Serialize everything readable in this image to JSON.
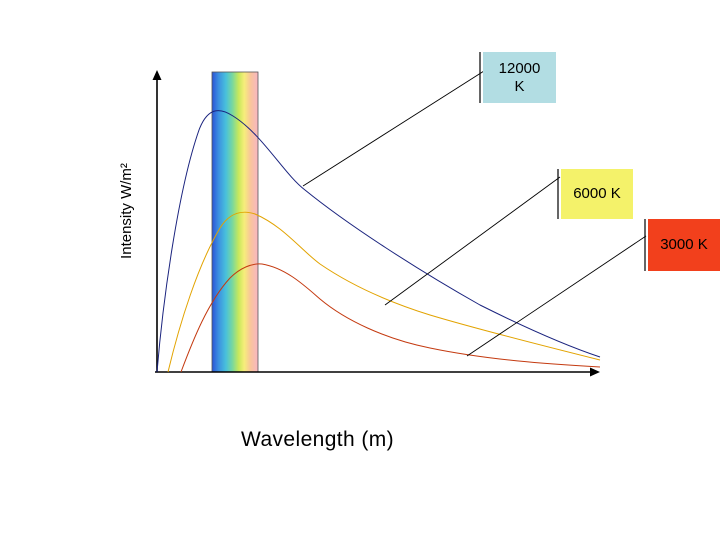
{
  "diagram": {
    "y_axis_label": "Intensity W/m²",
    "x_axis_label": "Wavelength (m)",
    "curves": [
      {
        "id": "12000",
        "label": "12000 K",
        "label_lines": [
          "12000",
          "K"
        ],
        "color": "#1a237e",
        "box_color": "#b2dde3"
      },
      {
        "id": "6000",
        "label": "6000 K",
        "label_lines": [
          "6000 K"
        ],
        "color": "#e2a300",
        "box_color": "#f4f26a"
      },
      {
        "id": "3000",
        "label": "3000 K",
        "label_lines": [
          "3000 K"
        ],
        "color": "#c43a10",
        "box_color": "#f2401c"
      }
    ],
    "visible_spectrum_colors": [
      "#2b53d6",
      "#3c8fe0",
      "#48c0dc",
      "#77d7a0",
      "#c8e85b",
      "#f6ee7a",
      "#f9c59b",
      "#f7b6c2"
    ]
  }
}
